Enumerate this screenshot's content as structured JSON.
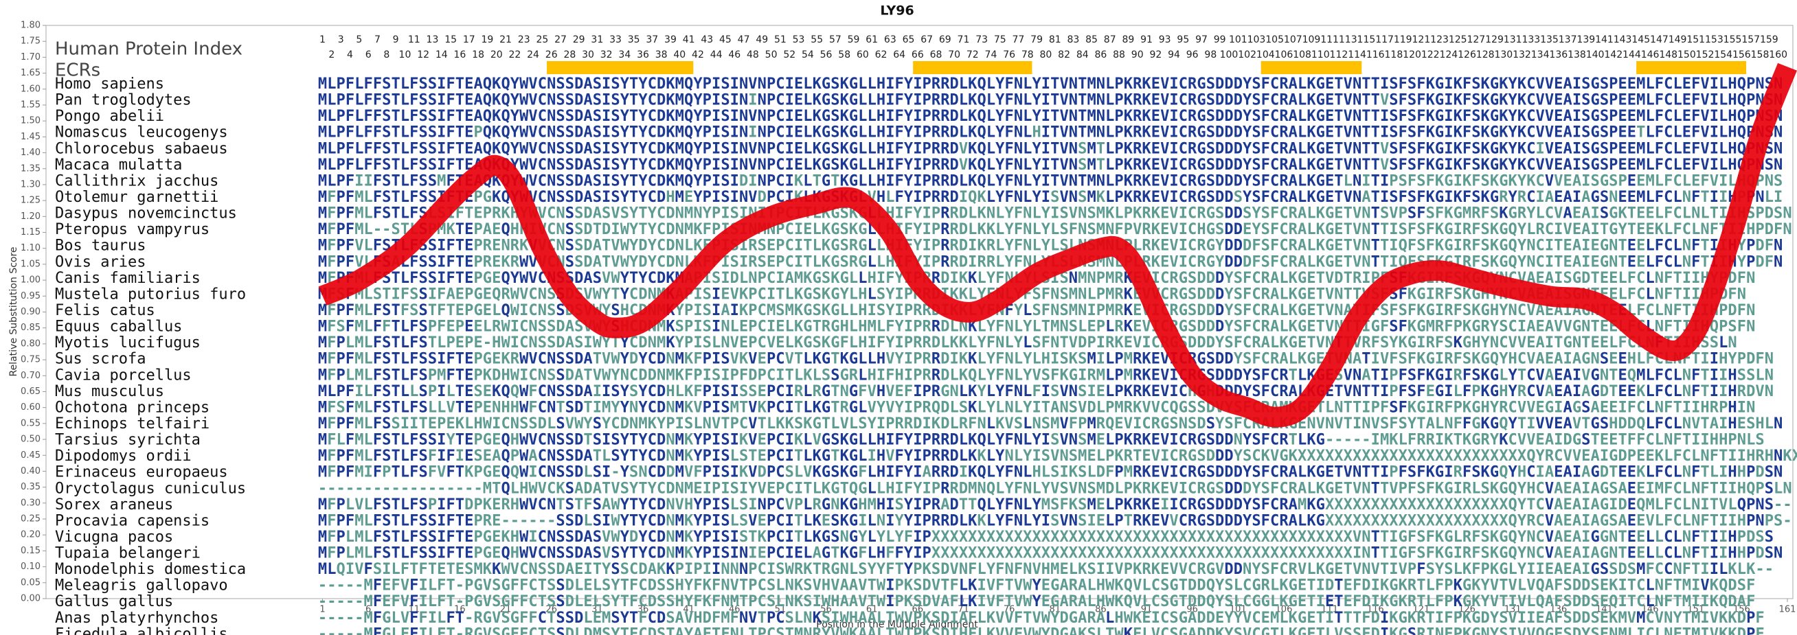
{
  "chart_data": {
    "type": "line",
    "title": "LY96",
    "xlabel": "Position in the Multiple Alignment",
    "ylabel": "Relative Substitution Score",
    "x": [
      1,
      5,
      10,
      15,
      18,
      20,
      22,
      25,
      28,
      31,
      33,
      36,
      40,
      45,
      50,
      55,
      58,
      60,
      63,
      66,
      69,
      72,
      75,
      79,
      83,
      86,
      88,
      90,
      93,
      96,
      99,
      102,
      105,
      108,
      111,
      114,
      117,
      120,
      123,
      126,
      130,
      135,
      139,
      142,
      145,
      148,
      150,
      152,
      155,
      158,
      161
    ],
    "values": [
      0.95,
      1.0,
      1.1,
      1.25,
      1.33,
      1.36,
      1.3,
      1.1,
      0.95,
      0.87,
      0.85,
      0.87,
      0.97,
      1.12,
      1.2,
      1.24,
      1.26,
      1.24,
      1.15,
      1.0,
      0.92,
      0.9,
      0.94,
      1.02,
      1.07,
      1.1,
      1.1,
      1.03,
      0.85,
      0.7,
      0.63,
      0.6,
      0.57,
      0.6,
      0.72,
      0.88,
      0.98,
      1.02,
      1.03,
      1.01,
      0.98,
      0.95,
      0.94,
      0.9,
      0.83,
      0.78,
      0.8,
      0.9,
      1.15,
      1.45,
      1.67
    ],
    "color": "#e8000b",
    "xlim": [
      -29.2,
      161.6
    ],
    "ylim": [
      0,
      1.8
    ],
    "xticks": [
      1,
      6,
      11,
      16,
      21,
      26,
      31,
      36,
      41,
      46,
      51,
      56,
      61,
      66,
      71,
      76,
      81,
      86,
      91,
      96,
      101,
      106,
      111,
      116,
      121,
      126,
      131,
      136,
      141,
      146,
      151,
      156,
      161
    ],
    "yticks": [
      {
        "value": 0,
        "label": "0.00"
      },
      {
        "value": 0.05,
        "label": "0.05"
      },
      {
        "value": 0.1,
        "label": "0.10"
      },
      {
        "value": 0.15,
        "label": "0.15"
      },
      {
        "value": 0.2,
        "label": "0.20"
      },
      {
        "value": 0.25,
        "label": "0.25"
      },
      {
        "value": 0.3,
        "label": "0.30"
      },
      {
        "value": 0.35,
        "label": "0.35"
      },
      {
        "value": 0.4,
        "label": "0.40"
      },
      {
        "value": 0.45,
        "label": "0.45"
      },
      {
        "value": 0.5,
        "label": "0.50"
      },
      {
        "value": 0.55,
        "label": "0.55"
      },
      {
        "value": 0.6,
        "label": "0.60"
      },
      {
        "value": 0.65,
        "label": "0.65"
      },
      {
        "value": 0.7,
        "label": "0.70"
      },
      {
        "value": 0.75,
        "label": "0.75"
      },
      {
        "value": 0.8,
        "label": "0.80"
      },
      {
        "value": 0.85,
        "label": "0.85"
      },
      {
        "value": 0.9,
        "label": "0.90"
      },
      {
        "value": 0.95,
        "label": "0.95"
      },
      {
        "value": 1,
        "label": "1.00"
      },
      {
        "value": 1.05,
        "label": "1.05"
      },
      {
        "value": 1.1,
        "label": "1.10"
      },
      {
        "value": 1.15,
        "label": "1.15"
      },
      {
        "value": 1.2,
        "label": "1.20"
      },
      {
        "value": 1.25,
        "label": "1.25"
      },
      {
        "value": 1.3,
        "label": "1.30"
      },
      {
        "value": 1.35,
        "label": "1.35"
      },
      {
        "value": 1.4,
        "label": "1.40"
      },
      {
        "value": 1.45,
        "label": "1.45"
      },
      {
        "value": 1.5,
        "label": "1.50"
      },
      {
        "value": 1.55,
        "label": "1.55"
      },
      {
        "value": 1.6,
        "label": "1.60"
      },
      {
        "value": 1.65,
        "label": "1.65"
      },
      {
        "value": 1.7,
        "label": "1.70"
      },
      {
        "value": 1.75,
        "label": "1.75"
      },
      {
        "value": 1.8,
        "label": "1.80"
      }
    ]
  },
  "alignment": {
    "header": "Human Protein Index",
    "ecr_label": "ECRs",
    "ecr_color": "#ffc000",
    "ecrs": [
      [
        26,
        41
      ],
      [
        66,
        78
      ],
      [
        104,
        114
      ],
      [
        145,
        156
      ]
    ],
    "conserved_color": "#1c3a94",
    "variable_color": "#5e9c92",
    "position_numbers": [
      1,
      2,
      3,
      4,
      5,
      6,
      7,
      8,
      9,
      10,
      11,
      12,
      13,
      14,
      15,
      16,
      17,
      18,
      19,
      20,
      21,
      22,
      23,
      24,
      25,
      26,
      27,
      28,
      29,
      30,
      31,
      32,
      33,
      34,
      35,
      36,
      37,
      38,
      39,
      40,
      41,
      42,
      43,
      44,
      45,
      46,
      47,
      48,
      49,
      50,
      51,
      52,
      53,
      54,
      55,
      56,
      57,
      58,
      59,
      60,
      61,
      62,
      63,
      64,
      65,
      66,
      67,
      68,
      69,
      70,
      71,
      72,
      73,
      74,
      75,
      76,
      77,
      78,
      79,
      80,
      81,
      82,
      83,
      84,
      85,
      86,
      87,
      88,
      89,
      90,
      91,
      92,
      93,
      94,
      95,
      96,
      97,
      98,
      99,
      100,
      101,
      102,
      103,
      104,
      105,
      106,
      107,
      108,
      109,
      110,
      111,
      112,
      113,
      114,
      115,
      116,
      117,
      118,
      119,
      120,
      121,
      122,
      123,
      124,
      125,
      126,
      127,
      128,
      129,
      130,
      131,
      132,
      133,
      134,
      135,
      136,
      137,
      138,
      139,
      140,
      141,
      142,
      143,
      144,
      145,
      146,
      147,
      148,
      149,
      150,
      151,
      152,
      153,
      154,
      155,
      156,
      157,
      158,
      159,
      160
    ],
    "species": [
      {
        "name": "Homo sapiens",
        "sequence": "MLPFLFFSTLFSSIFTEAQKQYWVCNSSDASISYTYCDKMQYPISINVNPCIELKGSKGLLHIFYIPRRDLKQLYFNLYITVNTMNLPKRKEVICRGSDDDYSFCRALKGETVNTTISFSFKGIKFSKGKYKCVVEAISGSPEEMLFCLEFVILHQPNSN"
      },
      {
        "name": "Pan troglodytes",
        "sequence": "MLPFLFFSTLFSSIFTEAQKQYWVCNSSDASISYTYCDKMQYPISININPCIELKGSKGLLHIFYIPRRDLKQLYFNLYITVNTMNLPKRKEVICRGSDDDYSFCRALKGETVNTTVSFSFKGIKFSKGKYKCVVEAISGSPEEMLFCLEFVILHQPNSN"
      },
      {
        "name": "Pongo abelii",
        "sequence": "MLPFLFFSTLFSSIFTEAQKQYWVCNSSDASISYTYCDKMQYPISINVNPCIELKGSKGLLHIFYIPRRDLKQLYFNLYITVNTMNLPKRKEVICRGSDDDYSFCRALKGETVNTTISFSFKGIKFSKGKYKCVVEAISGSPEEMLFCLEFVILHQPNSN"
      },
      {
        "name": "Nomascus leucogenys",
        "sequence": "MLPFLFFSTLFSSIFTEPQKQYWVCNSSDASISYTYCDKMQYPISININPCIELKGSKGLLHIFYIPRRDLKQLYFNLHITVNTMNLPKRKEVICRGSDDDYSFCRALKGETVNTTISFSFKGIKFSKGKYKCVVEAISGSPEETLFCLEFVILHQPNSN"
      },
      {
        "name": "Chlorocebus sabaeus",
        "sequence": "MLPFLFFSTLFSSIFTEAQKQYWVCNSSDASISYTYCDKMQYPISINVNPCIELKGSKGLLHIFYIPRRDVKQLYFNLYITVNSMTLPKRKEVICRGSDDDYSFCRALKGETVNTTVSFSFKGIKFSKGKYKCIVEAISGSPEEMLFCLEFVILHQPNSN"
      },
      {
        "name": "Macaca mulatta",
        "sequence": "MLPFLFFSTLFSSIFTEAQKQYWVCNSSDASISYTYCDKMQYPISINVNPCIELKGSKGLLHIFYIPRRDVKQLYFNLYITVNSMTLPKRKEVICRGSDDDYSFCRALKGETVNTTVSFSFKGIKFSKGKYKCVVEAISGSPEEMLFCLEFVILHQPNSN"
      },
      {
        "name": "Callithrix jacchus",
        "sequence": "MLPFIIFSTLFSSMFTEAQKQYWVCNSSDASISYTYCDKMQYPISIDINPCIKLTGTKGLLHIFYIPRRDLKQLYFNLYITVNTMNLPKRKEVICRGSDDDYSFCRALKGETLNITIPSFSFKGIKFSKGKYKCVVEAISGSPEEMLFCLEFVILHQPNS"
      },
      {
        "name": "Otolemur garnettii",
        "sequence": "MFPFMLFSTLFSSIFTEPGKQYWVCNSSDASISYTYCDHMEYPISINVDPCIKLKGSKGLVHLFYIPRRDIQKLYFNLYISVNSMKLPKRKEVICRGSDDSYSFCRALKGETVNATISFSFKGIKFSKGRYRCIAEAIAGSNEEMLFCLNFTIIHPPNLI"
      },
      {
        "name": "Dasypus novemcinctus",
        "sequence": "MFPFMLFSTLFSLSIFTEPRKHYWVCNSSDASVSYTYCDNMNYPISINITPCITLKGSKGLLHIFYIPRRDLKNLYFNLYISVNSMKLPKRKEVICRGSDDSYSFCRALKGETVNTSVPSFSFKGMRFSKGRYLCVAEAISGKTEELFCLNLTIIHSPDSN"
      },
      {
        "name": "Pteropus vampyrus",
        "sequence": "MFPFML--STLSPMKTEPAEQHHIVCNSSDTDIWYTYCDNMKFPISINMNPCIELKGSKGLLHIFYIPRRDLKKLYFNLYLSFNSMNFPVRKEVICHGSDDEYSFCRALKGETVNTTISFSFKGIRFSKGQYLRCIVEAITGYTEEKLFCLNFTIIHPDFN"
      },
      {
        "name": "Bos taurus",
        "sequence": "MFPFVLFSTLFSSIFTEPRENRKVVCNSSDATVWYDYCDNLKFPISIRSEPCITLKGSRGLLHIFYIPRRDIKRLYFNLYLSLNSMNLPLRKEVICRGYDDDFSFCRALKGETVNTTIQFSFKGIRFSKGQYNCITEAIEGNTEELFCLNFTIIHYPDFN"
      },
      {
        "name": "Ovis aries",
        "sequence": "MFPFVLFSALFSSIFTEPREKRWVVCNSSDATVWYDYCDNLKFPISIRSEPCITLKGSRGLLHIFYIPRRDIRRLYFNLYLSLNSMNLPLRKEVICRGYDDDFSFCRALKGETVNTTIQFSFKGIRFSKGQYNCITEAIEGNTEELFCLNFTIIHYPDFN"
      },
      {
        "name": "Canis familiaris",
        "sequence": "MFPFMLFSTLFSSIFTEPGEQYWVCNSSDASVWYTYCDKMAPISIDLNPCIAMKGSKGLLHIFYIPRRDIKKLYFNLYLSISNMNPMRKEVICRGSDDDYSFCRALKGETVDTRIPFSFKGIRFSKGQYNCVAEAISGDTEELFCLNFTIIHYPDFN"
      },
      {
        "name": "Mustela putorius furo",
        "sequence": "MFSFMLSTIFSSIFAEPGEQRWVCNSSDSVWYTYCDNMKAPISIEVKPCITLKGSKGYLHLSYIPRRDIKKLYFNLYFSFNSMNLPMRKEVVCRGSDDDYSFCRALKGETVNTTVSFSFKGIRFSKGHYNCVAEAISGNTEELFCLNFTIIHPDFN"
      },
      {
        "name": "Felis catus",
        "sequence": "MFPFMLFSTFSSTFTEPGELQWICNSSDSVWYSHCDNMKYPISIAIKPCMSMKGSKGLLHISYIPRRDIKKLYFNFYLSFNSMNIPMRKEVICRGSDDDYSFCRALKGETVNATIFSFSFKGIRFSKGHYNCVAEAIAGNTEELFCLNFTIIHPDFN"
      },
      {
        "name": "Equus caballus",
        "sequence": "MFSFMLFFTLFSPFEPEELRWICNSSDASVWYSHCDNMKSPISINLEPCIELKGTRGHLHMLFYIPRRDLNKLYFNLYLTMNSLEPLRKEVICRGSDDDYSFCRALKGETVNTTIGFSFKGMRFPKGRYSCIAEAVVGNTEELFCLNFTIIHQPSFN"
      },
      {
        "name": "Myotis lucifugus",
        "sequence": "MFPLMLFSTLFSTLPEPE-HWICNSSDASIWYTYCDNMKYPISLNVEPCVELKGSKGFLHIFYIPRRDLKKLYFNLYLSFNTVDPIRKEVICRGSDDDYSFCRALKGETVNTTVRFSYKGIRFSKGHYNCVVEAITGNTEELFCLNFTIIHSSLN"
      },
      {
        "name": "Sus scrofa",
        "sequence": "MFPFMLFSTLFSSIFTEPGEKRWVCNSSDATVWYDYCDNMKFPISVKVEPCVTLKGTKGLLHVYIPRRDIKKLYFNLYLHISKSMILPMRKEVICRGSDDYSFCRALKGETVNATIVFSFKGIRFSKGQYHCVAEAIAGNSEEHLFCLNFTIIHYPDFN"
      },
      {
        "name": "Cavia porcellus",
        "sequence": "MFPLMLFSTLFSPMFTEPKDHWICNSSDATVWYNCDDNMKFPISIPFDPCITLKLSSGRLHIFHIPRRDLKQLYFNLYVSFKGIRMLPMRKEVICRGSDDDYSFCRTLKGESVNATIPFSFKGIRFSKGLYTCVAEAIVGNTEQMLFCLNFTIIHSSLN"
      },
      {
        "name": "Mus musculus",
        "sequence": "MLPFILFSTLLSPILTESEKQQWFCNSSDAIISYSYCDHLKFPISISSEPCIRLRGTNGFVHVEFIPRGNLKYLYFNLFISVNSIELPKRKEVICHGHDDDYSFCRALKGETVNTTIPFSFEGILFPKGHYRCVAEAIAGDTEEKLFCLNFTIIHRDVN"
      },
      {
        "name": "Ochotona princeps",
        "sequence": "MFSFMLFSTLFSLLVTEPENHHWFCNTSDTIMYYNYCDNMKVPISMTVKPCITLKGTRGLVYVYIPRQDLSKLYLNLYITANSVDLPMRKVVCQGSSDVYSFCRAMKGETLNTTIPFSFKGIRFPKGHYRCVVEGIAGSAEEIFCLNFTIIHRPHIN"
      },
      {
        "name": "Echinops telfairi",
        "sequence": "MFPFMLFSSIITEPEKLHWICNSSDLSVWYSYCDNMKYPISLNVTPCVTLKKSKGTLVLSYIPRRDIKDLRFNLKVSLNSMVFPMRQEVICRGSNSDSYSFCRALKGENVNVTINVSFSYTALNFFGKGQYTIVVEAVTGSHDDQLFCLNVTAIHESHLN"
      },
      {
        "name": "Tarsius syrichta",
        "sequence": "MFLFMLFSTLFSSIYTEPGEQHWVCNSSDTSISYTYCDNMKYPISIKVEPCIKLVGSKGLLHIFYIPRRDLKQLYFNLYISVNSMELPKRKEVICRGSDDNYSFCRTLKG-----IMKLFRRIKTKGRYKCVVEAIDGSTEETFFCLNFTIIHHPNLS"
      },
      {
        "name": "Dipodomys ordii",
        "sequence": "MFPFMLFSTLFSFIFIESEAQPWACNSSDATLSYTYCDNMKYPISLSTEPCITLKGTKGLIHVFYIPRRDLKKLYNLYISVNSMELPKRTEVICRGSDDDYSCKVGKXXXXXXXXXXXXXXXXXXXXXXXXXQYRCVVEAIGDPEEKLFCLNFTIIHRHNKX"
      },
      {
        "name": "Erinaceus europaeus",
        "sequence": "MFPFMIFPTLFSFVFTKPGEQQWICNSSDLSI-YSNCDDMVFPISIKVDPCSLVKGSKGFLHIFYIARRDIKQLYFNLHLSIKSLDFPMRKEVICRGSDDDYSFCRALKGETVNTTIPFSFKGIRFSKGQYHCIAEAIAGDTEEKLFCLNFTLIHHPDSN"
      },
      {
        "name": "Oryctolagus cuniculus",
        "sequence": "------------------MTQLHWVCKSADATVSYTYCDNMEIPISIYVEPCITLKGTQGLLHIFYIPRRDMNQLYFNLYVSVNSMDLPKRKEVICRGSDDDYSFCRALKGETVNTTVPFSFKGIRLSKGQYHCVAEAIAGSAEEIMFCLNFTIIHQPSLN"
      },
      {
        "name": "Sorex araneus",
        "sequence": "MFPLVLFSTLFSPIFTDPKERHWVCNTSTFSAWYTYCDNVHYPISLSINPCVPLRGNKGHMHISYIPRADTTQLYFNLYMSFKSMELPKRKEIICRGSDDDYSFCRAMKGXXXXXXXXXXXXXXXXXXXXQYTCVAEAIAGIDEQMLFCLNITVLQPNS--"
      },
      {
        "name": "Procavia capensis",
        "sequence": "MFPFMLFSTLFSSIFTEPRE------SSDLSIWYTYCDNMKYPISLSVEPCITLKESKGILNIYYIPRRDLKKLYFNLYISVNSIELPTRKEVVCRGSDDDYSFCRALKGXXXXXXXXXXXXXXXXXXXXQYRCVAEAIAGSAEEVLFCLNFTIIHPNPS-"
      },
      {
        "name": "Vicugna pacos",
        "sequence": "MFPLMLFSTLFSSIFTEPGEKHWICNSSDASVWYDYCDNMKYPISISTKPCITLKGSNGYLYLYFIPXXXXXXXXXXXXXXXXXXXXXXXXXXXXXXXXXXXXXXXXXXXXXXVNTTIGFSFKGLRFSKGQYNCVAEAIGGNTEELLCLNFTIIHPDSS"
      },
      {
        "name": "Tupaia belangeri",
        "sequence": "MFPLMLFSTLFSSIFTEPGEQHWVCNSSDASVSYTYCDNMKYPISINIEPCIELAGTKGFLHFFYIPXXXXXXXXXXXXXXXXXXXXXXXXXXXXXXXXXXXXXXXXXXXXXXINTTIGFSFKGIRFSKGQYNCVAEAIAGNTEELLCLNFTIIHHPDSN"
      },
      {
        "name": "Monodelphis domestica",
        "sequence": "MLQIVFSILFTFTETESMKKWVCNSSDAEITYSSCDAKKPIPIINNNPCISWRKTRGNLSYYFTYPKSDVNFLYFNFNVHMELKSIIVPKRKEVVCRGVDDNYSFCRVLKGETVNVTIVPFSYSLKFPKGLYIIEAEAIGSSDSMFCCNFTIILKLK--"
      },
      {
        "name": "Meleagris gallopavo",
        "sequence": "-----MFEFVFILFT-PGVSGFFCTSSDLELSYTFCDSSHYFKFNVTPCSLNKSVHVAAVTWIPKSDVTFLKIVFTVWYEGARALHWKQVLCSGTDDQYSLCGRLKGETIDTEFDIKGKRTLFPKGKYVTVLVQAFSDDSEKITCLNFTMIVKQDSF"
      },
      {
        "name": "Gallus gallus",
        "sequence": "-----MFEFVFILFT-PGVSGFFCTSSDLELSYTFCDSSHYFKFNMTPCSLNKSIWHAAVTWIPKSDVAFLKIVFTVWYEGARALHWKQVLCSGTDDQYSLCGGLKGETIETEFDIKGKRTLFPKGKYVTIVLQAFSDDSEQITCLNFTMIIKQDAF"
      },
      {
        "name": "Anas platyrhynchos",
        "sequence": "-----MFGLVFFILFT-RGVSGFFCTSSDLEMSYTFCDSAVHDFMFNVTPCSLNKSIWHAALTWVPKSDIAFLKVVFTVWYDGARALHWKEICSGADDEYYVCEMLKGETITTTFDIKGKRTIFPKGDYSVIIEAFSDDSEKMVMCVNYTMIVKKDPF"
      },
      {
        "name": "Ficedula albicollis",
        "sequence": "-----MFGLFFILFT-RGVSGFFCTSSDLDMSYTFCDSTAYAFTFNLTPCSTMNRYVWKAALTWIPKSDIHFLKVVFVWYDGAKSLTWKELVCSGADDKYSVCGTLKGETLVSSFDIKGSRINFPKGNYSIVVQGFSDYSENMLICLNFTMIVKKDPF"
      }
    ]
  }
}
